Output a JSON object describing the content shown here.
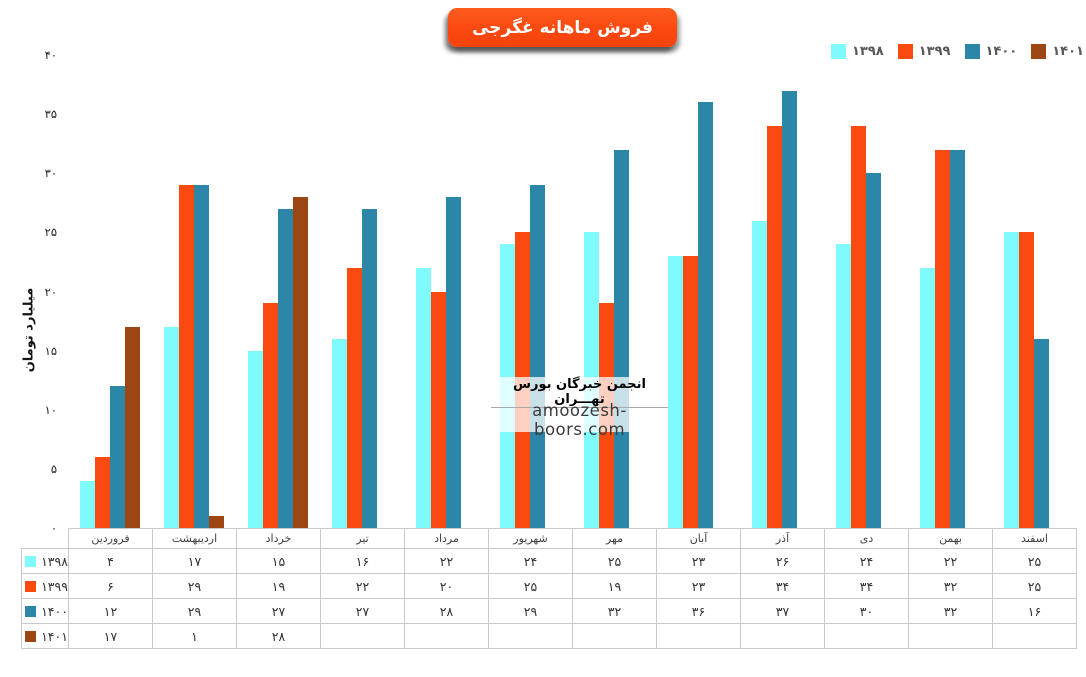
{
  "title": "فروش ماهانه غگرجی",
  "y_axis": {
    "title": "میلیارد تومان",
    "ticks": [
      40,
      35,
      30,
      25,
      20,
      15,
      10,
      5,
      0
    ]
  },
  "watermark": {
    "line1": "انجمن خبرگان بورس تهـــران",
    "line2": "amoozesh-boors.com"
  },
  "colors": {
    "title_badge_bg": "#fa480e",
    "series_1398": "#7ffbfd",
    "series_1399": "#fb4a10",
    "series_1400": "#2b86a8",
    "series_1401": "#9c4613",
    "axis_line": "#c9c9c9",
    "legend_text": "#595959"
  },
  "chart_data": {
    "type": "bar",
    "title": "فروش ماهانه غگرجی",
    "xlabel": "",
    "ylabel": "میلیارد تومان",
    "ylim": [
      0,
      40
    ],
    "grid": false,
    "legend_position": "top-right",
    "categories": [
      "فروردین",
      "اردیبهشت",
      "خرداد",
      "تیر",
      "مرداد",
      "شهریور",
      "مهر",
      "آبان",
      "آذر",
      "دی",
      "بهمن",
      "اسفند"
    ],
    "series": [
      {
        "name": "۱۳۹۸",
        "color": "#7ffbfd",
        "values": [
          4,
          17,
          15,
          16,
          22,
          24,
          25,
          23,
          26,
          24,
          22,
          25
        ]
      },
      {
        "name": "۱۳۹۹",
        "color": "#fb4a10",
        "values": [
          6,
          29,
          19,
          22,
          20,
          25,
          19,
          23,
          34,
          34,
          32,
          25
        ]
      },
      {
        "name": "۱۴۰۰",
        "color": "#2b86a8",
        "values": [
          12,
          29,
          27,
          27,
          28,
          29,
          32,
          36,
          37,
          30,
          32,
          16
        ]
      },
      {
        "name": "۱۴۰۱",
        "color": "#9c4613",
        "values": [
          17,
          1,
          28,
          null,
          null,
          null,
          null,
          null,
          null,
          null,
          null,
          null
        ]
      }
    ]
  }
}
